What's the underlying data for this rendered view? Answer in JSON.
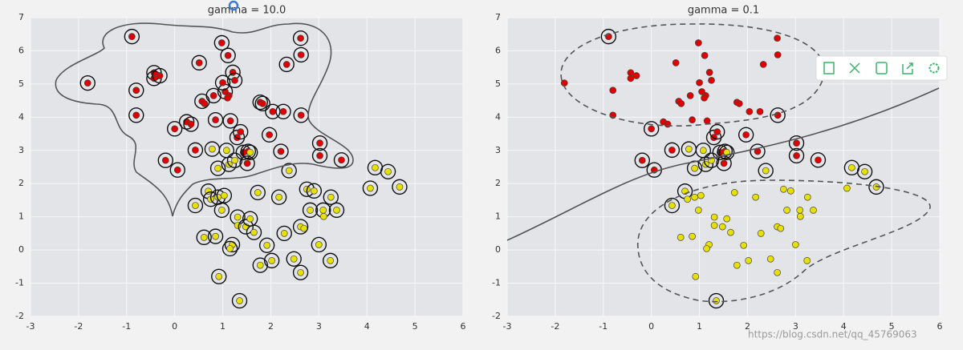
{
  "charts": [
    {
      "chart_data": {
        "type": "scatter",
        "title": "gamma = 10.0",
        "xlim": [
          -3,
          6
        ],
        "ylim": [
          -2,
          7
        ],
        "xticks": [
          -3,
          -2,
          -1,
          0,
          1,
          2,
          3,
          4,
          5,
          6
        ],
        "yticks": [
          -2,
          -1,
          0,
          1,
          2,
          3,
          4,
          5,
          6,
          7
        ],
        "grid": true,
        "series": [
          {
            "color": "#e00000",
            "x": [
              -1.81,
              -0.89,
              -0.8,
              -0.8,
              -0.43,
              -0.43,
              -0.31,
              0.0,
              0.06,
              -0.19,
              0.25,
              0.34,
              0.43,
              0.51,
              0.57,
              0.62,
              0.81,
              0.85,
              0.98,
              1.11,
              1.05,
              1.13,
              1.1,
              1.0,
              1.21,
              1.25,
              1.16,
              1.3,
              1.37,
              1.43,
              1.53,
              1.51,
              1.78,
              1.83,
              2.04,
              1.97,
              2.21,
              2.33,
              2.62,
              2.63,
              2.63,
              3.02,
              3.02,
              3.47,
              2.26
            ],
            "y": [
              5.03,
              6.43,
              4.81,
              4.06,
              5.34,
              5.17,
              5.25,
              3.65,
              2.41,
              2.7,
              3.86,
              3.79,
              3.01,
              5.64,
              4.48,
              4.41,
              4.65,
              3.92,
              6.24,
              5.86,
              4.77,
              4.65,
              4.58,
              5.04,
              5.35,
              5.11,
              3.89,
              3.39,
              3.56,
              2.94,
              2.97,
              2.61,
              4.45,
              4.41,
              4.17,
              3.47,
              2.97,
              5.59,
              6.38,
              5.88,
              4.06,
              3.22,
              2.84,
              2.71,
              4.17
            ],
            "circled": [
              true,
              true,
              true,
              true,
              true,
              true,
              true,
              true,
              true,
              true,
              true,
              true,
              true,
              true,
              true,
              false,
              true,
              true,
              true,
              true,
              true,
              false,
              false,
              true,
              true,
              true,
              true,
              true,
              true,
              true,
              true,
              true,
              true,
              true,
              true,
              true,
              true,
              true,
              true,
              true,
              true,
              true,
              true,
              true,
              true
            ]
          },
          {
            "color": "#e8e000",
            "x": [
              0.43,
              0.7,
              0.75,
              0.78,
              0.85,
              0.61,
              0.9,
              0.9,
              0.98,
              1.03,
              1.08,
              1.13,
              1.25,
              1.31,
              1.31,
              1.2,
              1.15,
              1.35,
              1.48,
              1.57,
              1.57,
              1.65,
              1.73,
              1.78,
              1.92,
              2.02,
              2.17,
              2.38,
              2.48,
              2.28,
              2.62,
              2.75,
              2.62,
              2.69,
              2.82,
              2.9,
              3.0,
              3.09,
              3.1,
              3.25,
              3.37,
              3.24,
              4.07,
              4.17,
              4.44,
              4.68,
              0.92
            ],
            "y": [
              1.34,
              1.77,
              1.53,
              3.04,
              0.41,
              0.38,
              2.46,
              1.59,
              1.2,
              1.64,
              3.0,
              2.58,
              2.7,
              0.99,
              0.74,
              0.16,
              0.04,
              -1.53,
              0.7,
              2.94,
              0.94,
              0.53,
              1.73,
              -0.46,
              0.14,
              -0.32,
              1.59,
              2.39,
              -0.27,
              0.5,
              -0.68,
              1.83,
              0.7,
              0.65,
              1.2,
              1.78,
              0.16,
              1.2,
              1.01,
              1.59,
              1.2,
              -0.32,
              1.86,
              2.48,
              2.36,
              1.9,
              -0.8
            ],
            "circled": [
              true,
              true,
              true,
              true,
              true,
              true,
              true,
              true,
              true,
              true,
              true,
              true,
              true,
              true,
              false,
              true,
              true,
              true,
              true,
              true,
              true,
              true,
              true,
              true,
              true,
              true,
              true,
              true,
              true,
              true,
              true,
              true,
              true,
              false,
              true,
              true,
              true,
              true,
              false,
              true,
              true,
              true,
              true,
              true,
              true,
              true,
              true
            ]
          }
        ]
      }
    },
    {
      "chart_data": {
        "type": "scatter",
        "title": "gamma = 0.1",
        "xlim": [
          -3,
          6
        ],
        "ylim": [
          -2,
          7
        ],
        "xticks": [
          -3,
          -2,
          -1,
          0,
          1,
          2,
          3,
          4,
          5,
          6
        ],
        "yticks": [
          -2,
          -1,
          0,
          1,
          2,
          3,
          4,
          5,
          6,
          7
        ],
        "grid": true,
        "series": [
          {
            "color": "#e00000",
            "x": [
              -1.81,
              -0.89,
              -0.8,
              -0.8,
              -0.43,
              -0.43,
              -0.31,
              0.0,
              0.06,
              -0.19,
              0.25,
              0.34,
              0.43,
              0.51,
              0.57,
              0.62,
              0.81,
              0.85,
              0.98,
              1.11,
              1.05,
              1.13,
              1.1,
              1.0,
              1.21,
              1.25,
              1.16,
              1.3,
              1.37,
              1.43,
              1.53,
              1.51,
              1.78,
              1.83,
              2.04,
              1.97,
              2.21,
              2.33,
              2.62,
              2.63,
              2.63,
              3.02,
              3.02,
              3.47,
              2.26
            ],
            "y": [
              5.03,
              6.43,
              4.81,
              4.06,
              5.34,
              5.17,
              5.25,
              3.65,
              2.41,
              2.7,
              3.86,
              3.79,
              3.01,
              5.64,
              4.48,
              4.41,
              4.65,
              3.92,
              6.24,
              5.86,
              4.77,
              4.65,
              4.58,
              5.04,
              5.35,
              5.11,
              3.89,
              3.39,
              3.56,
              2.94,
              2.97,
              2.61,
              4.45,
              4.41,
              4.17,
              3.47,
              2.97,
              5.59,
              6.38,
              5.88,
              4.06,
              3.22,
              2.84,
              2.71,
              4.17
            ],
            "circled": [
              false,
              true,
              false,
              false,
              false,
              false,
              false,
              true,
              true,
              true,
              false,
              false,
              true,
              false,
              false,
              false,
              false,
              false,
              false,
              false,
              false,
              false,
              false,
              false,
              false,
              false,
              false,
              true,
              true,
              true,
              true,
              true,
              false,
              false,
              false,
              true,
              true,
              false,
              false,
              false,
              true,
              true,
              true,
              true,
              false
            ]
          },
          {
            "color": "#e8e000",
            "x": [
              0.43,
              0.7,
              0.75,
              0.78,
              0.85,
              0.61,
              0.9,
              0.9,
              0.98,
              1.03,
              1.08,
              1.13,
              1.25,
              1.31,
              1.31,
              1.2,
              1.15,
              1.35,
              1.48,
              1.57,
              1.57,
              1.65,
              1.73,
              1.78,
              1.92,
              2.02,
              2.17,
              2.38,
              2.48,
              2.28,
              2.62,
              2.75,
              2.62,
              2.69,
              2.82,
              2.9,
              3.0,
              3.09,
              3.1,
              3.25,
              3.37,
              3.24,
              4.07,
              4.17,
              4.44,
              4.68,
              0.92
            ],
            "y": [
              1.34,
              1.77,
              1.53,
              3.04,
              0.41,
              0.38,
              2.46,
              1.59,
              1.2,
              1.64,
              3.0,
              2.58,
              2.7,
              0.99,
              0.74,
              0.16,
              0.04,
              -1.53,
              0.7,
              2.94,
              0.94,
              0.53,
              1.73,
              -0.46,
              0.14,
              -0.32,
              1.59,
              2.39,
              -0.27,
              0.5,
              -0.68,
              1.83,
              0.7,
              0.65,
              1.2,
              1.78,
              0.16,
              1.2,
              1.01,
              1.59,
              1.2,
              -0.32,
              1.86,
              2.48,
              2.36,
              1.9,
              -0.8
            ],
            "circled": [
              true,
              true,
              false,
              true,
              false,
              false,
              true,
              false,
              false,
              false,
              true,
              true,
              true,
              false,
              false,
              false,
              false,
              true,
              false,
              true,
              false,
              false,
              false,
              false,
              false,
              false,
              false,
              true,
              false,
              false,
              false,
              false,
              false,
              false,
              false,
              false,
              false,
              false,
              false,
              false,
              false,
              false,
              false,
              true,
              true,
              true,
              false
            ]
          }
        ]
      }
    }
  ],
  "watermark": "https://blog.csdn.net/qq_45769063"
}
